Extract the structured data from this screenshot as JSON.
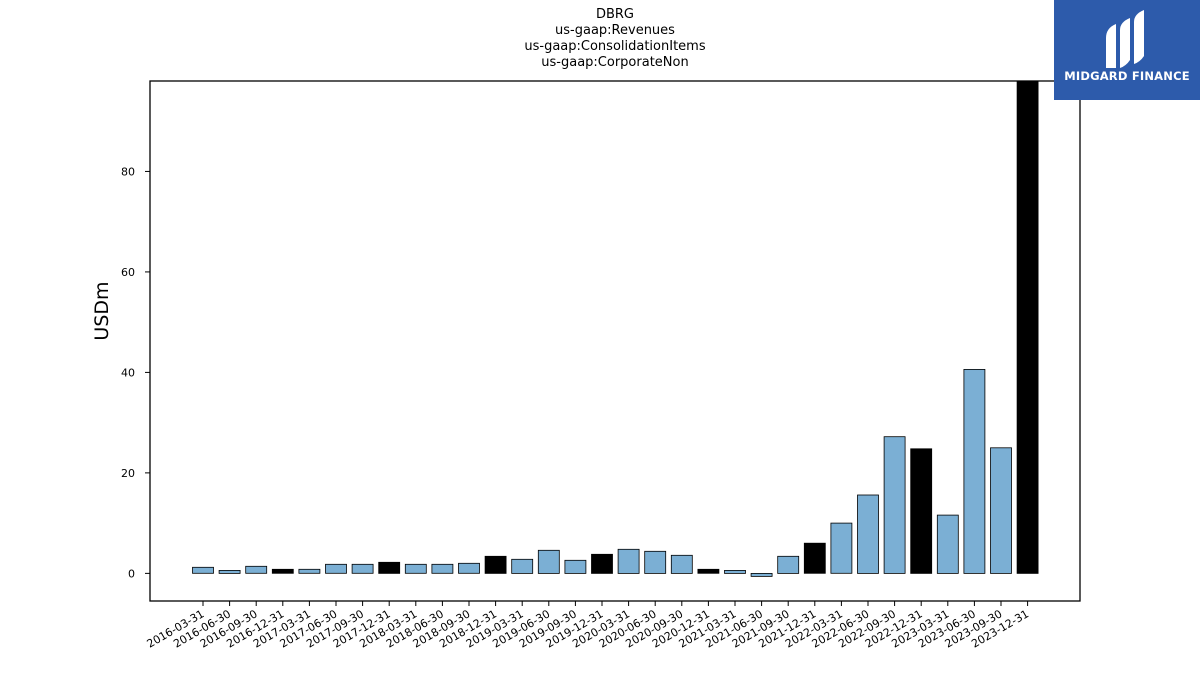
{
  "brand": {
    "name": "MIDGARD FINANCE",
    "logo_icon": "midgard-logo-icon",
    "bg_color": "#2d5bab"
  },
  "chart_data": {
    "type": "bar",
    "title": [
      "DBRG",
      "us-gaap:Revenues",
      "us-gaap:ConsolidationItems",
      "us-gaap:CorporateNon"
    ],
    "xlabel": "",
    "ylabel": "USDm",
    "ylim": [
      -5.5,
      98
    ],
    "yticks": [
      0,
      20,
      40,
      60,
      80
    ],
    "grid": false,
    "colors": {
      "quarter": "#7bafd4",
      "year_end": "#000000",
      "edge": "#000000"
    },
    "categories": [
      "2016-03-31",
      "2016-06-30",
      "2016-09-30",
      "2016-12-31",
      "2017-03-31",
      "2017-06-30",
      "2017-09-30",
      "2017-12-31",
      "2018-03-31",
      "2018-06-30",
      "2018-09-30",
      "2018-12-31",
      "2019-03-31",
      "2019-06-30",
      "2019-09-30",
      "2019-12-31",
      "2020-03-31",
      "2020-06-30",
      "2020-09-30",
      "2020-12-31",
      "2021-03-31",
      "2021-06-30",
      "2021-09-30",
      "2021-12-31",
      "2022-03-31",
      "2022-06-30",
      "2022-09-30",
      "2022-12-31",
      "2023-03-31",
      "2023-06-30",
      "2023-09-30",
      "2023-12-31"
    ],
    "values": [
      1.2,
      0.6,
      1.4,
      0.8,
      0.8,
      1.8,
      1.8,
      2.2,
      1.8,
      1.8,
      2.0,
      3.4,
      2.8,
      4.6,
      2.6,
      3.8,
      4.8,
      4.4,
      3.6,
      0.8,
      0.6,
      -0.6,
      3.4,
      6.0,
      10.0,
      15.6,
      27.2,
      24.8,
      11.6,
      40.6,
      25.0,
      98.0
    ],
    "year_end": [
      false,
      false,
      false,
      true,
      false,
      false,
      false,
      true,
      false,
      false,
      false,
      true,
      false,
      false,
      false,
      true,
      false,
      false,
      false,
      true,
      false,
      false,
      false,
      true,
      false,
      false,
      false,
      true,
      false,
      false,
      false,
      true
    ]
  }
}
